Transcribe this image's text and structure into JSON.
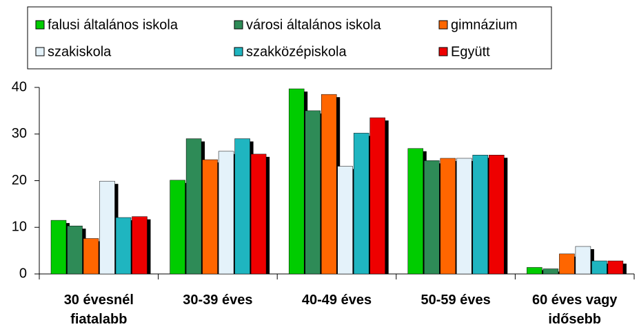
{
  "chart_data": {
    "type": "bar",
    "categories": [
      "30 évesnél fiatalabb",
      "30-39 éves",
      "40-49 éves",
      "50-59 éves",
      "60 éves vagy idősebb"
    ],
    "series": [
      {
        "name": "falusi általános iskola",
        "color": "#00cc00",
        "values": [
          11.5,
          20.1,
          39.7,
          26.9,
          1.4
        ]
      },
      {
        "name": "városi általános iskola",
        "color": "#2e8b57",
        "values": [
          10.3,
          29.0,
          35.0,
          24.3,
          1.1
        ]
      },
      {
        "name": "gimnázium",
        "color": "#ff6600",
        "values": [
          7.6,
          24.5,
          38.5,
          24.8,
          4.3
        ]
      },
      {
        "name": "szakiskola",
        "color": "#e4f2fa",
        "values": [
          19.9,
          26.3,
          23.1,
          24.8,
          5.9
        ]
      },
      {
        "name": "szakközépiskola",
        "color": "#1fb5c0",
        "values": [
          12.1,
          29.0,
          30.2,
          25.5,
          2.8
        ]
      },
      {
        "name": "Együtt",
        "color": "#ee0000",
        "values": [
          12.3,
          25.7,
          33.5,
          25.5,
          2.8
        ]
      }
    ],
    "ylim": [
      0,
      40
    ],
    "yticks": [
      0,
      10,
      20,
      30,
      40
    ],
    "legend": "top"
  }
}
